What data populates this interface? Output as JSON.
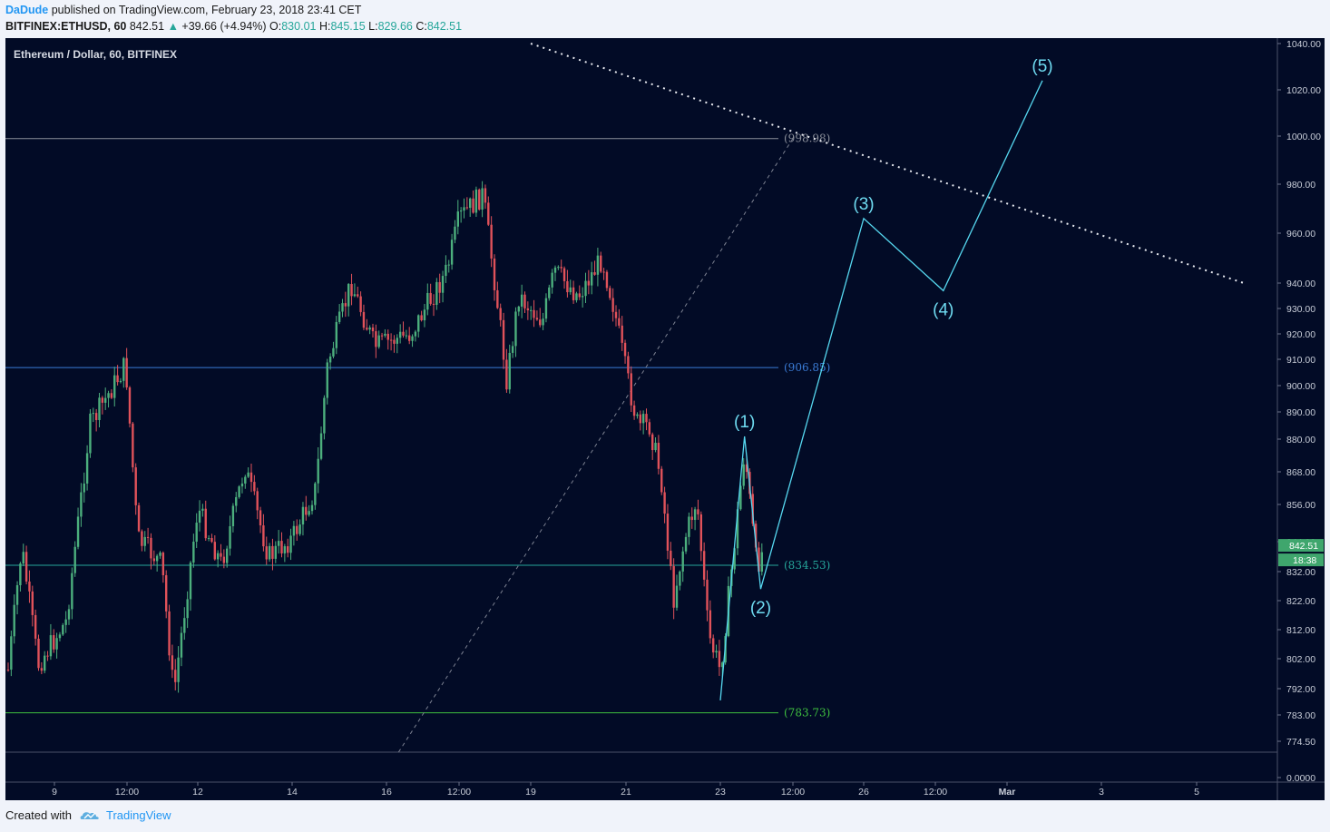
{
  "header": {
    "author": "DaDude",
    "published_text": "published on TradingView.com, February 23, 2018 23:41 CET",
    "symbol": "BITFINEX:ETHUSD, 60",
    "last": "842.51",
    "arrow": "▲",
    "change": "+39.66 (+4.94%)",
    "o_label": "O:",
    "o_value": "830.01",
    "h_label": "H:",
    "h_value": "845.15",
    "l_label": "L:",
    "l_value": "829.66",
    "c_label": "C:",
    "c_value": "842.51"
  },
  "footer": {
    "created_with": "Created with",
    "brand": "TradingView"
  },
  "colors": {
    "background": "#020b26",
    "up": "#4caf7d",
    "down": "#e0525a",
    "wave": "#56d8f0",
    "level_998": "#8a8f9a",
    "level_906": "#3a7bd5",
    "level_834": "#26a69a",
    "level_783": "#3fbf3f"
  },
  "chart_data": {
    "type": "line",
    "title": "Ethereum / Dollar, 60, BITFINEX",
    "xlabel": "",
    "ylabel": "",
    "x_ticks": [
      "9",
      "12:00",
      "12",
      "14",
      "16",
      "12:00",
      "19",
      "21",
      "23",
      "12:00",
      "26",
      "12:00",
      "Mar",
      "3",
      "5"
    ],
    "y_ticks": [
      "1040.00",
      "1020.00",
      "1000.00",
      "980.00",
      "960.00",
      "940.00",
      "930.00",
      "920.00",
      "910.00",
      "900.00",
      "890.00",
      "880.00",
      "868.00",
      "856.00",
      "844.00",
      "832.00",
      "822.00",
      "812.00",
      "802.00",
      "792.00",
      "783.00",
      "774.50",
      "0.0000"
    ],
    "price_label": "842.51",
    "countdown_label": "18:38",
    "price_path": [
      {
        "x": "Feb 8 06:00",
        "y": 790
      },
      {
        "x": "Feb 8 12:00",
        "y": 842
      },
      {
        "x": "Feb 8 18:00",
        "y": 800
      },
      {
        "x": "Feb 9 06:00",
        "y": 815
      },
      {
        "x": "Feb 9 18:00",
        "y": 885
      },
      {
        "x": "Feb 10 12:00",
        "y": 908
      },
      {
        "x": "Feb 10 18:00",
        "y": 845
      },
      {
        "x": "Feb 11 06:00",
        "y": 835
      },
      {
        "x": "Feb 11 12:00",
        "y": 790
      },
      {
        "x": "Feb 12 00:00",
        "y": 855
      },
      {
        "x": "Feb 12 12:00",
        "y": 835
      },
      {
        "x": "Feb 13 00:00",
        "y": 870
      },
      {
        "x": "Feb 13 12:00",
        "y": 838
      },
      {
        "x": "Feb 14 00:00",
        "y": 845
      },
      {
        "x": "Feb 14 12:00",
        "y": 862
      },
      {
        "x": "Feb 14 18:00",
        "y": 908
      },
      {
        "x": "Feb 15 06:00",
        "y": 940
      },
      {
        "x": "Feb 15 18:00",
        "y": 915
      },
      {
        "x": "Feb 16 12:00",
        "y": 920
      },
      {
        "x": "Feb 17 06:00",
        "y": 945
      },
      {
        "x": "Feb 17 12:00",
        "y": 966
      },
      {
        "x": "Feb 18 00:00",
        "y": 976
      },
      {
        "x": "Feb 18 06:00",
        "y": 940
      },
      {
        "x": "Feb 18 12:00",
        "y": 902
      },
      {
        "x": "Feb 18 18:00",
        "y": 935
      },
      {
        "x": "Feb 19 06:00",
        "y": 925
      },
      {
        "x": "Feb 19 12:00",
        "y": 945
      },
      {
        "x": "Feb 20 00:00",
        "y": 935
      },
      {
        "x": "Feb 20 12:00",
        "y": 950
      },
      {
        "x": "Feb 20 18:00",
        "y": 930
      },
      {
        "x": "Feb 21 00:00",
        "y": 905
      },
      {
        "x": "Feb 21 06:00",
        "y": 885
      },
      {
        "x": "Feb 21 12:00",
        "y": 885
      },
      {
        "x": "Feb 21 18:00",
        "y": 865
      },
      {
        "x": "Feb 22 00:00",
        "y": 822
      },
      {
        "x": "Feb 22 06:00",
        "y": 845
      },
      {
        "x": "Feb 22 12:00",
        "y": 858
      },
      {
        "x": "Feb 22 18:00",
        "y": 810
      },
      {
        "x": "Feb 23 00:00",
        "y": 798
      },
      {
        "x": "Feb 23 06:00",
        "y": 836
      },
      {
        "x": "Feb 23 12:00",
        "y": 876
      },
      {
        "x": "Feb 23 18:00",
        "y": 834
      },
      {
        "x": "Feb 23 22:00",
        "y": 842.51
      }
    ],
    "levels": [
      {
        "value": 998.98,
        "label": "(998.98)",
        "color": "#8a8f9a"
      },
      {
        "value": 906.85,
        "label": "(906.85)",
        "color": "#3a7bd5"
      },
      {
        "value": 834.53,
        "label": "(834.53)",
        "color": "#26a69a"
      },
      {
        "value": 783.73,
        "label": "(783.73)",
        "color": "#3fbf3f"
      }
    ],
    "fib_trendline": [
      {
        "x": "Feb 16 06:00",
        "y": 774.5
      },
      {
        "x": "Feb 24 12:00",
        "y": 998.98
      }
    ],
    "resistance_line": [
      {
        "x": "Feb 19 00:00",
        "y": 1040
      },
      {
        "x": "Mar 6 00:00",
        "y": 940
      }
    ],
    "wave_points": [
      {
        "label": "",
        "x": "Feb 23 00:00",
        "y": 788
      },
      {
        "label": "(1)",
        "x": "Feb 23 12:00",
        "y": 881
      },
      {
        "label": "(2)",
        "x": "Feb 23 20:00",
        "y": 826
      },
      {
        "label": "(3)",
        "x": "Feb 26 00:00",
        "y": 966
      },
      {
        "label": "(4)",
        "x": "Feb 27 16:00",
        "y": 937
      },
      {
        "label": "(5)",
        "x": "Mar 1 18:00",
        "y": 1024
      }
    ]
  }
}
